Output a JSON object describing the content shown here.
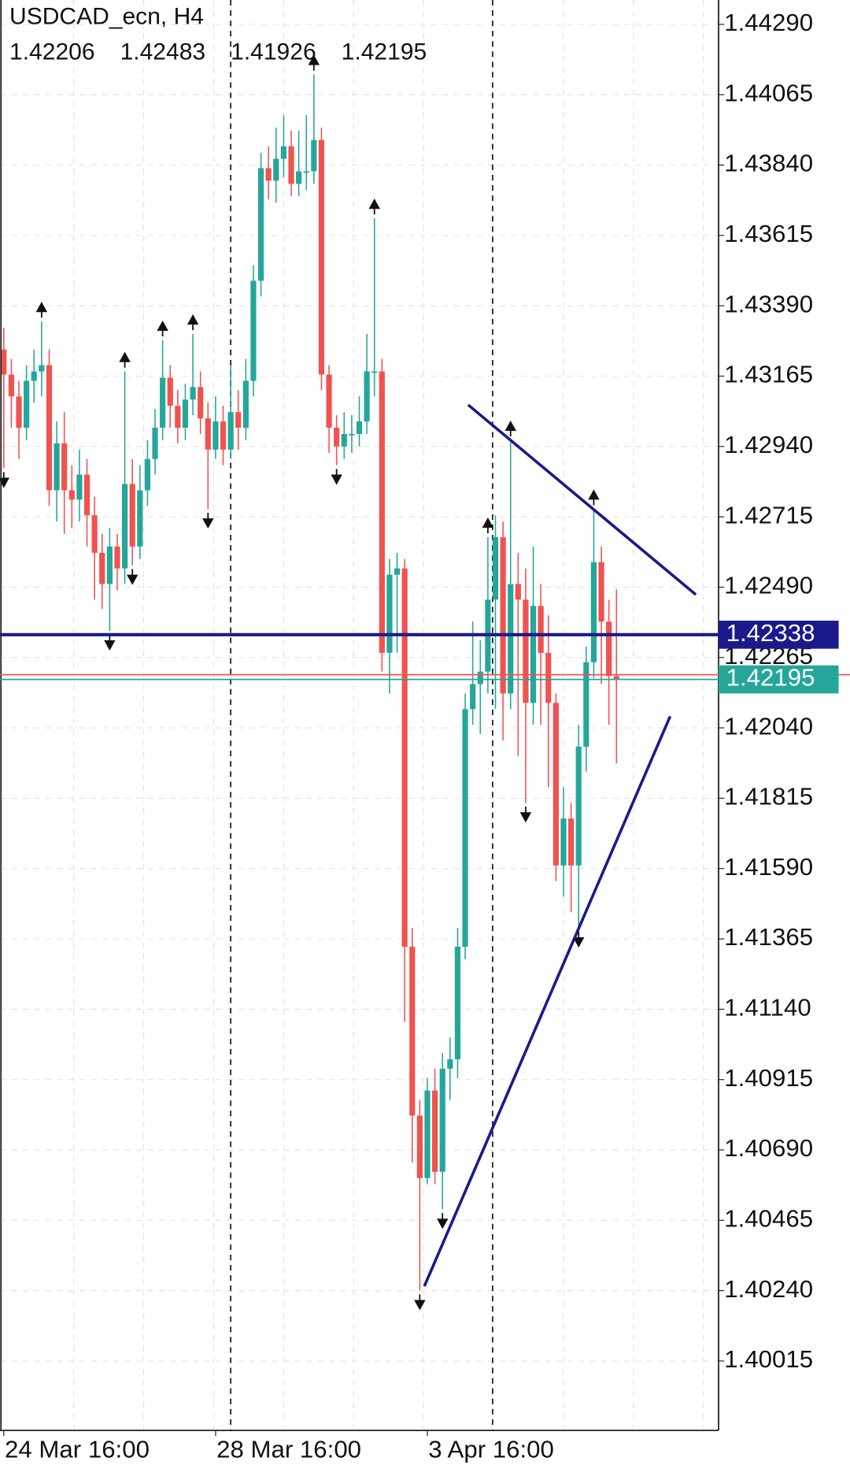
{
  "chart_data": {
    "type": "candlestick",
    "title": "USDCAD_ecn, H4",
    "categories": [
      "24 Mar 16:00",
      null,
      null,
      null,
      null,
      null,
      null,
      null,
      null,
      null,
      null,
      null,
      null,
      null,
      null,
      null,
      null,
      null,
      null,
      null,
      null,
      null,
      null,
      null,
      null,
      null,
      null,
      null,
      "28 Mar 16:00",
      null,
      null,
      null,
      null,
      null,
      null,
      null,
      null,
      null,
      null,
      null,
      null,
      null,
      null,
      null,
      null,
      null,
      null,
      null,
      null,
      null,
      null,
      null,
      null,
      null,
      null,
      null,
      "3 Apr 16:00",
      null,
      null,
      null,
      null,
      null,
      null,
      null,
      null,
      null,
      null,
      null,
      null,
      null,
      null,
      null,
      null,
      null,
      null,
      null,
      null,
      null,
      null,
      null,
      null,
      null
    ],
    "open": [
      1.4325,
      1.4317,
      1.431,
      1.43,
      1.4315,
      1.4318,
      1.432,
      1.428,
      1.4295,
      1.428,
      1.4277,
      1.4285,
      1.4272,
      1.426,
      1.425,
      1.4262,
      1.4255,
      1.4282,
      1.4262,
      1.428,
      1.429,
      1.43,
      1.4316,
      1.4307,
      1.43,
      1.4309,
      1.4313,
      1.4303,
      1.4293,
      1.4302,
      1.4293,
      1.4305,
      1.43,
      1.4315,
      1.4347,
      1.4383,
      1.4379,
      1.4386,
      1.439,
      1.4378,
      1.4382,
      1.4382,
      1.4392,
      1.4317,
      1.43,
      1.4294,
      1.4298,
      1.4298,
      1.4302,
      1.4318,
      1.4318,
      1.4228,
      1.4253,
      1.4255,
      1.4134,
      1.408,
      1.406,
      1.4088,
      1.4062,
      1.4095,
      1.4098,
      1.4134,
      1.421,
      1.4218,
      1.4222,
      1.4245,
      1.4265,
      1.4215,
      1.425,
      1.4245,
      1.4212,
      1.4243,
      1.4228,
      1.4212,
      1.416,
      1.4175,
      1.416,
      1.4198,
      1.4225,
      1.4257,
      1.4238,
      1.42206
    ],
    "high": [
      1.4332,
      1.4322,
      1.4315,
      1.432,
      1.4325,
      1.4334,
      1.4325,
      1.4302,
      1.4305,
      1.4288,
      1.4293,
      1.429,
      1.4278,
      1.4266,
      1.4268,
      1.4266,
      1.4318,
      1.429,
      1.4288,
      1.4296,
      1.4306,
      1.4328,
      1.432,
      1.4312,
      1.4314,
      1.433,
      1.4318,
      1.4308,
      1.431,
      1.4307,
      1.432,
      1.4312,
      1.4322,
      1.4352,
      1.4388,
      1.439,
      1.4396,
      1.44,
      1.4395,
      1.4395,
      1.44,
      1.4413,
      1.4396,
      1.432,
      1.4304,
      1.4305,
      1.4304,
      1.431,
      1.433,
      1.4367,
      1.4322,
      1.4258,
      1.426,
      1.4258,
      1.414,
      1.4085,
      1.4092,
      1.4095,
      1.41,
      1.4105,
      1.414,
      1.4215,
      1.4238,
      1.4232,
      1.4265,
      1.4272,
      1.427,
      1.4296,
      1.426,
      1.4255,
      1.4262,
      1.425,
      1.424,
      1.4215,
      1.4185,
      1.418,
      1.4205,
      1.423,
      1.4274,
      1.4262,
      1.4245,
      1.42483
    ],
    "low": [
      1.4287,
      1.43,
      1.429,
      1.4296,
      1.4308,
      1.431,
      1.4275,
      1.427,
      1.4266,
      1.4268,
      1.427,
      1.4262,
      1.4245,
      1.4242,
      1.4235,
      1.4248,
      1.425,
      1.4256,
      1.4258,
      1.4275,
      1.4285,
      1.4296,
      1.43,
      1.4295,
      1.4296,
      1.4304,
      1.4298,
      1.4274,
      1.429,
      1.4288,
      1.429,
      1.4293,
      1.4296,
      1.431,
      1.4342,
      1.4373,
      1.4372,
      1.438,
      1.4374,
      1.4374,
      1.4376,
      1.4378,
      1.4312,
      1.4292,
      1.4288,
      1.429,
      1.4292,
      1.4294,
      1.4298,
      1.431,
      1.4222,
      1.4215,
      1.4228,
      1.411,
      1.4065,
      1.4024,
      1.4058,
      1.4058,
      1.405,
      1.4085,
      1.4092,
      1.413,
      1.4205,
      1.4202,
      1.4215,
      1.421,
      1.42,
      1.421,
      1.4195,
      1.418,
      1.4205,
      1.4205,
      1.4185,
      1.4155,
      1.415,
      1.4145,
      1.414,
      1.419,
      1.422,
      1.4218,
      1.4205,
      1.41926
    ],
    "close": [
      1.4317,
      1.431,
      1.43,
      1.4315,
      1.4318,
      1.432,
      1.428,
      1.4295,
      1.428,
      1.4277,
      1.4285,
      1.4272,
      1.426,
      1.425,
      1.4262,
      1.4255,
      1.4282,
      1.4262,
      1.428,
      1.429,
      1.43,
      1.4316,
      1.4307,
      1.43,
      1.4309,
      1.4313,
      1.4303,
      1.4293,
      1.4302,
      1.4293,
      1.4305,
      1.43,
      1.4315,
      1.4347,
      1.4383,
      1.4379,
      1.4386,
      1.439,
      1.4378,
      1.4382,
      1.4382,
      1.4392,
      1.4317,
      1.43,
      1.4294,
      1.4298,
      1.4298,
      1.4302,
      1.4318,
      1.4318,
      1.4228,
      1.4253,
      1.4255,
      1.4134,
      1.408,
      1.406,
      1.4088,
      1.4062,
      1.4095,
      1.4098,
      1.4134,
      1.421,
      1.4218,
      1.4222,
      1.4245,
      1.4265,
      1.4215,
      1.425,
      1.4245,
      1.4212,
      1.4243,
      1.4228,
      1.4212,
      1.416,
      1.4175,
      1.416,
      1.4198,
      1.4225,
      1.4257,
      1.4238,
      1.42206,
      1.42195
    ],
    "up_color": "#26a69a",
    "down_color": "#ef5350",
    "ylim": [
      1.39793,
      1.44368
    ],
    "yticks": [
      {
        "value": 1.4429,
        "label": "1.44290"
      },
      1.44065,
      {
        "value": 1.4384,
        "label": "1.43840"
      },
      1.43615,
      {
        "value": 1.4339,
        "label": "1.43390"
      },
      1.43165,
      {
        "value": 1.4294,
        "label": "1.42940"
      },
      1.42715,
      {
        "value": 1.4249,
        "label": "1.42490"
      },
      1.42265,
      {
        "value": 1.4204,
        "label": "1.42040"
      },
      1.41815,
      {
        "value": 1.4159,
        "label": "1.41590"
      },
      1.41365,
      {
        "value": 1.4114,
        "label": "1.41140"
      },
      1.40915,
      {
        "value": 1.4069,
        "label": "1.40690"
      },
      1.40465,
      {
        "value": 1.4024,
        "label": "1.40240"
      },
      1.40015
    ],
    "grid": true,
    "hline": {
      "value": 1.42338,
      "color": "#1a1a8c"
    },
    "ask_line": {
      "value": 1.4221,
      "color": "#ef5350"
    },
    "bid_color": "#26a69a",
    "trendlines": [
      {
        "points": [
          [
            61.4,
            1.43073
          ],
          [
            91.5,
            1.42466
          ]
        ],
        "color": "#1a1a8c"
      },
      {
        "points": [
          [
            55.6,
            1.40254
          ],
          [
            88.1,
            1.42077
          ]
        ],
        "color": "#1a1a8c"
      }
    ],
    "fractals_up": [
      5,
      16,
      21,
      25,
      41,
      49,
      64,
      67,
      78
    ],
    "fractals_down": [
      0,
      14,
      17,
      27,
      44,
      55,
      58,
      69,
      76
    ]
  }
}
